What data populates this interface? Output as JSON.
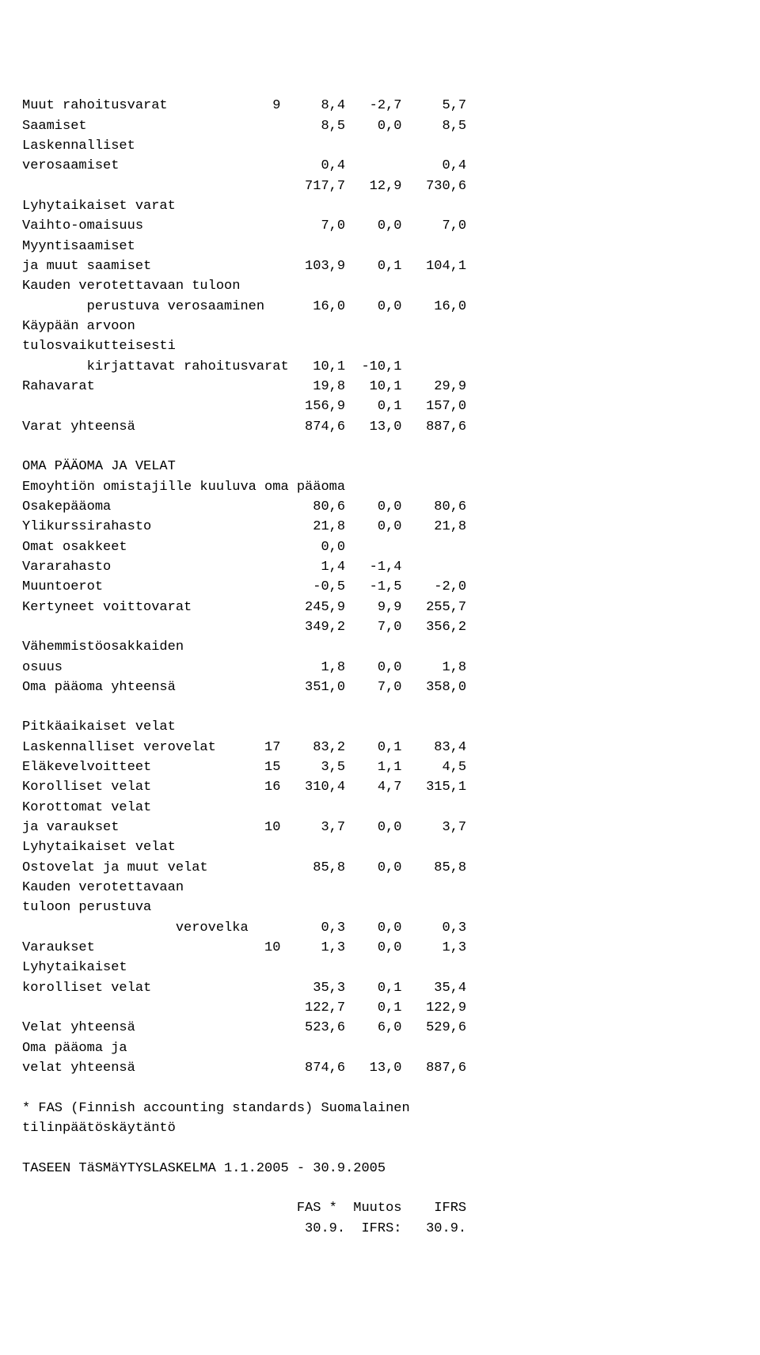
{
  "lines": [
    "Muut rahoitusvarat             9     8,4   -2,7     5,7",
    "Saamiset                             8,5    0,0     8,5",
    "Laskennalliset",
    "verosaamiset                         0,4            0,4",
    "                                   717,7   12,9   730,6",
    "Lyhytaikaiset varat",
    "Vaihto-omaisuus                      7,0    0,0     7,0",
    "Myyntisaamiset",
    "ja muut saamiset                   103,9    0,1   104,1",
    "Kauden verotettavaan tuloon",
    "        perustuva verosaaminen      16,0    0,0    16,0",
    "Käypään arvoon",
    "tulosvaikutteisesti",
    "        kirjattavat rahoitusvarat   10,1  -10,1",
    "Rahavarat                           19,8   10,1    29,9",
    "                                   156,9    0,1   157,0",
    "Varat yhteensä                     874,6   13,0   887,6",
    "",
    "OMA PÄÄOMA JA VELAT",
    "Emoyhtiön omistajille kuuluva oma pääoma",
    "Osakepääoma                         80,6    0,0    80,6",
    "Ylikurssirahasto                    21,8    0,0    21,8",
    "Omat osakkeet                        0,0",
    "Vararahasto                          1,4   -1,4",
    "Muuntoerot                          -0,5   -1,5    -2,0",
    "Kertyneet voittovarat              245,9    9,9   255,7",
    "                                   349,2    7,0   356,2",
    "Vähemmistöosakkaiden",
    "osuus                                1,8    0,0     1,8",
    "Oma pääoma yhteensä                351,0    7,0   358,0",
    "",
    "Pitkäaikaiset velat",
    "Laskennalliset verovelat      17    83,2    0,1    83,4",
    "Eläkevelvoitteet              15     3,5    1,1     4,5",
    "Korolliset velat              16   310,4    4,7   315,1",
    "Korottomat velat",
    "ja varaukset                  10     3,7    0,0     3,7",
    "Lyhytaikaiset velat",
    "Ostovelat ja muut velat             85,8    0,0    85,8",
    "Kauden verotettavaan",
    "tuloon perustuva",
    "                   verovelka         0,3    0,0     0,3",
    "Varaukset                     10     1,3    0,0     1,3",
    "Lyhytaikaiset",
    "korolliset velat                    35,3    0,1    35,4",
    "                                   122,7    0,1   122,9",
    "Velat yhteensä                     523,6    6,0   529,6",
    "Oma pääoma ja",
    "velat yhteensä                     874,6   13,0   887,6",
    "",
    "* FAS (Finnish accounting standards) Suomalainen",
    "tilinpäätöskäytäntö",
    "",
    "TASEEN TäSMäYTYSLASKELMA 1.1.2005 - 30.9.2005",
    "",
    "                                  FAS *  Muutos    IFRS",
    "                                   30.9.  IFRS:   30.9."
  ]
}
